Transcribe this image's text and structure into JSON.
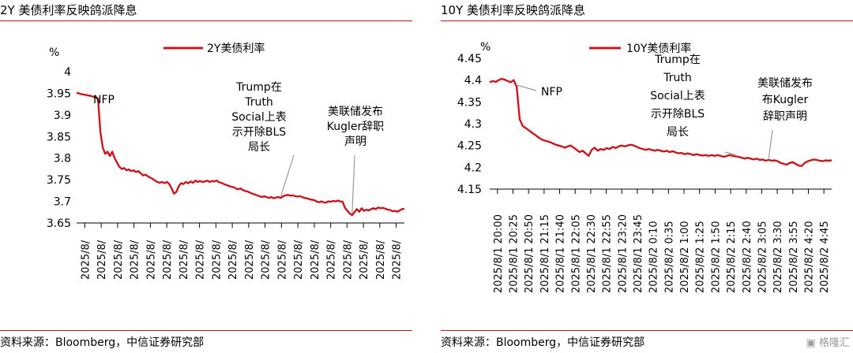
{
  "panels": [
    {
      "title": "2Y 美债利率反映鸽派降息",
      "source": "资料来源：Bloomberg，中信证券研究部",
      "chart_data": {
        "type": "line",
        "unit_label": "%",
        "ylim": [
          3.65,
          4.0
        ],
        "y_ticks": [
          "4",
          "3.95",
          "3.9",
          "3.85",
          "3.8",
          "3.75",
          "3.7",
          "3.65"
        ],
        "x_tick_labels": [
          "2025/8/",
          "2025/8/",
          "2025/8/",
          "2025/8/",
          "2025/8/",
          "2025/8/",
          "2025/8/",
          "2025/8/",
          "2025/8/",
          "2025/8/",
          "2025/8/",
          "2025/8/",
          "2025/8/",
          "2025/8/",
          "2025/8/",
          "2025/8/",
          "2025/8/",
          "2025/8/",
          "2025/8/",
          "2025/8/"
        ],
        "legend": "2Y美债利率",
        "legend_position": "top",
        "grid": false,
        "color": "#c8171e",
        "series": [
          {
            "name": "2Y美债利率",
            "values": [
              3.951,
              3.95,
              3.948,
              3.947,
              3.946,
              3.945,
              3.944,
              3.942,
              3.94,
              3.938,
              3.86,
              3.825,
              3.81,
              3.815,
              3.805,
              3.815,
              3.8,
              3.79,
              3.78,
              3.775,
              3.777,
              3.772,
              3.774,
              3.77,
              3.772,
              3.768,
              3.77,
              3.765,
              3.76,
              3.762,
              3.758,
              3.755,
              3.752,
              3.748,
              3.745,
              3.743,
              3.745,
              3.742,
              3.745,
              3.74,
              3.73,
              3.718,
              3.722,
              3.735,
              3.742,
              3.74,
              3.745,
              3.742,
              3.746,
              3.743,
              3.748,
              3.745,
              3.747,
              3.745,
              3.746,
              3.748,
              3.745,
              3.747,
              3.746,
              3.748,
              3.744,
              3.743,
              3.74,
              3.738,
              3.736,
              3.734,
              3.733,
              3.73,
              3.728,
              3.73,
              3.726,
              3.724,
              3.723,
              3.72,
              3.718,
              3.716,
              3.714,
              3.712,
              3.71,
              3.712,
              3.71,
              3.708,
              3.71,
              3.707,
              3.709,
              3.71,
              3.708,
              3.712,
              3.714,
              3.715,
              3.713,
              3.714,
              3.712,
              3.711,
              3.712,
              3.71,
              3.708,
              3.707,
              3.705,
              3.704,
              3.703,
              3.7,
              3.698,
              3.7,
              3.698,
              3.697,
              3.7,
              3.699,
              3.701,
              3.7,
              3.702,
              3.7,
              3.699,
              3.685,
              3.678,
              3.672,
              3.668,
              3.675,
              3.682,
              3.676,
              3.684,
              3.678,
              3.681,
              3.679,
              3.682,
              3.684,
              3.682,
              3.686,
              3.684,
              3.685,
              3.683,
              3.681,
              3.68,
              3.677,
              3.678,
              3.676,
              3.679,
              3.682,
              3.683
            ]
          }
        ],
        "annotations": [
          {
            "lines": [
              "NFP"
            ],
            "point_index": null
          },
          {
            "lines": [
              "Trump在",
              "Truth",
              "Social上表",
              "示开除BLS",
              "局长"
            ],
            "point_index": 86
          },
          {
            "lines": [
              "美联储发布",
              "Kugler辞职",
              "声明"
            ],
            "point_index": 116
          }
        ]
      }
    },
    {
      "title": "10Y 美债利率反映鸽派降息",
      "source": "资料来源：Bloomberg，中信证券研究部",
      "chart_data": {
        "type": "line",
        "unit_label": "%",
        "ylim": [
          4.15,
          4.45
        ],
        "y_ticks": [
          "4.45",
          "4.4",
          "4.35",
          "4.3",
          "4.25",
          "4.2",
          "4.15"
        ],
        "x_tick_labels": [
          "2025/8/1 20:00",
          "2025/8/1 20:25",
          "2025/8/1 20:50",
          "2025/8/1 21:15",
          "2025/8/1 21:40",
          "2025/8/1 22:05",
          "2025/8/1 22:30",
          "2025/8/1 22:55",
          "2025/8/1 23:20",
          "2025/8/1 23:45",
          "2025/8/2 0:10",
          "2025/8/2 0:35",
          "2025/8/2 1:00",
          "2025/8/2 1:25",
          "2025/8/2 1:50",
          "2025/8/2 2:15",
          "2025/8/2 2:40",
          "2025/8/2 3:05",
          "2025/8/2 3:30",
          "2025/8/2 3:55",
          "2025/8/2 4:20",
          "2025/8/2 4:45"
        ],
        "legend": "10Y美债利率",
        "legend_position": "top",
        "grid": false,
        "color": "#c8171e",
        "series": [
          {
            "name": "10Y美债利率",
            "values": [
              4.395,
              4.398,
              4.396,
              4.4,
              4.403,
              4.401,
              4.398,
              4.395,
              4.4,
              4.385,
              4.31,
              4.295,
              4.29,
              4.285,
              4.28,
              4.275,
              4.27,
              4.265,
              4.262,
              4.26,
              4.258,
              4.255,
              4.252,
              4.25,
              4.248,
              4.245,
              4.248,
              4.25,
              4.245,
              4.24,
              4.235,
              4.238,
              4.232,
              4.226,
              4.24,
              4.245,
              4.238,
              4.242,
              4.24,
              4.244,
              4.242,
              4.247,
              4.244,
              4.248,
              4.25,
              4.248,
              4.25,
              4.252,
              4.25,
              4.247,
              4.244,
              4.242,
              4.24,
              4.242,
              4.24,
              4.238,
              4.24,
              4.238,
              4.236,
              4.238,
              4.235,
              4.237,
              4.234,
              4.232,
              4.233,
              4.23,
              4.232,
              4.23,
              4.228,
              4.23,
              4.228,
              4.227,
              4.228,
              4.226,
              4.228,
              4.226,
              4.228,
              4.226,
              4.224,
              4.226,
              4.228,
              4.226,
              4.225,
              4.224,
              4.222,
              4.22,
              4.222,
              4.22,
              4.218,
              4.22,
              4.217,
              4.218,
              4.215,
              4.217,
              4.215,
              4.216,
              4.214,
              4.21,
              4.208,
              4.206,
              4.21,
              4.212,
              4.208,
              4.204,
              4.203,
              4.21,
              4.214,
              4.216,
              4.218,
              4.217,
              4.215,
              4.214,
              4.216,
              4.215,
              4.216
            ]
          }
        ],
        "annotations": [
          {
            "lines": [
              "NFP"
            ],
            "point_index": 9
          },
          {
            "lines": [
              "Trump在",
              "Truth",
              "Social上表",
              "示开除BLS",
              "局长"
            ],
            "point_index": 82
          },
          {
            "lines": [
              "美联储发布",
              "布Kugler",
              "辞职声明"
            ],
            "point_index": 93
          }
        ]
      }
    }
  ],
  "watermark": "格隆汇"
}
